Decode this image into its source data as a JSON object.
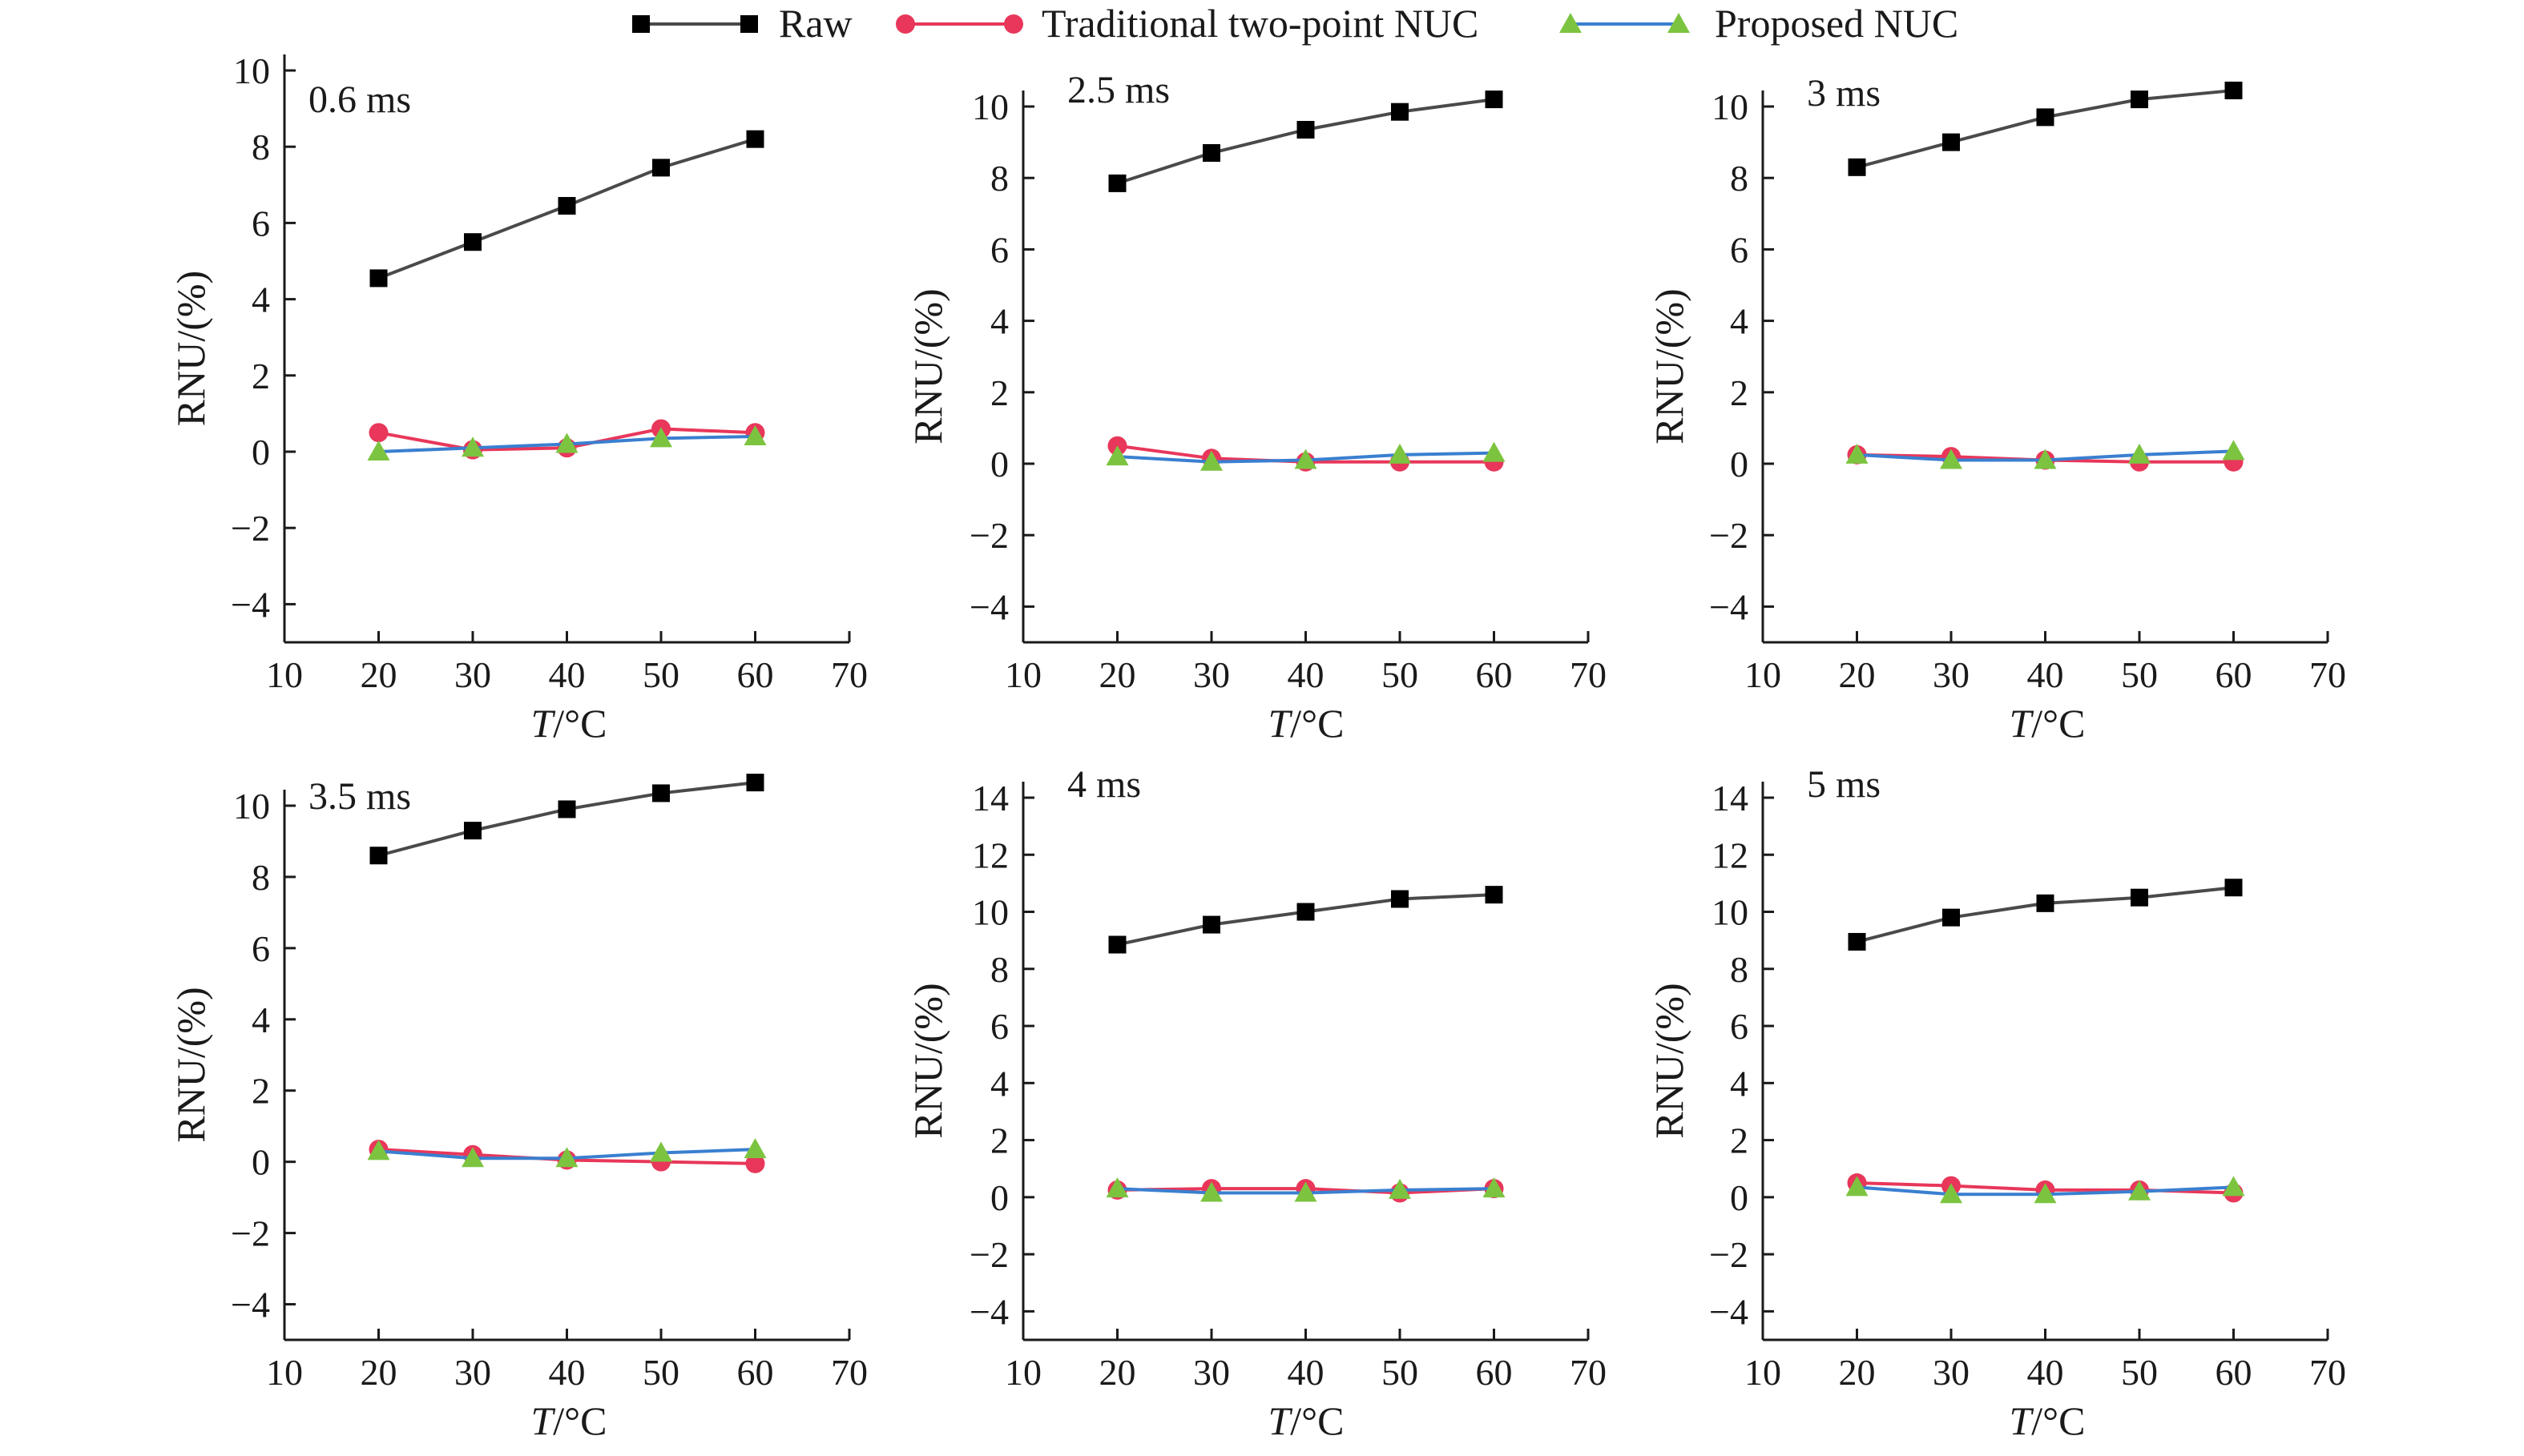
{
  "figure": {
    "legend": [
      {
        "label": "Raw",
        "color": "#4a4a4a",
        "marker": "square",
        "marker_color": "#000000"
      },
      {
        "label": "Traditional two-point NUC",
        "color": "#e8375a",
        "marker": "circle",
        "marker_color": "#e8375a"
      },
      {
        "label": "Proposed NUC",
        "color": "#3a7fd0",
        "marker": "triangle",
        "marker_color": "#7cc440"
      }
    ],
    "xlabel_italic": "T",
    "xlabel_rest": "/°C",
    "ylabel": "RNU/(%)"
  },
  "chart_data": [
    {
      "type": "line",
      "title": "0.6 ms",
      "xlabel": "T/°C",
      "ylabel": "RNU/(%)",
      "xlim": [
        10,
        70
      ],
      "ylim": [
        -5,
        10
      ],
      "xticks": [
        10,
        20,
        30,
        40,
        50,
        60,
        70
      ],
      "yticks": [
        -4,
        -2,
        0,
        2,
        4,
        6,
        8,
        10
      ],
      "x": [
        20,
        30,
        40,
        50,
        60
      ],
      "series": [
        {
          "name": "Raw",
          "values": [
            4.55,
            5.5,
            6.45,
            7.45,
            8.2
          ]
        },
        {
          "name": "Traditional two-point NUC",
          "values": [
            0.5,
            0.05,
            0.1,
            0.6,
            0.5
          ]
        },
        {
          "name": "Proposed NUC",
          "values": [
            0.0,
            0.1,
            0.2,
            0.35,
            0.4
          ]
        }
      ]
    },
    {
      "type": "line",
      "title": "2.5 ms",
      "xlabel": "T/°C",
      "ylabel": "RNU/(%)",
      "xlim": [
        10,
        70
      ],
      "ylim": [
        -5,
        11
      ],
      "xticks": [
        10,
        20,
        30,
        40,
        50,
        60,
        70
      ],
      "yticks": [
        -4,
        -2,
        0,
        2,
        4,
        6,
        8,
        10
      ],
      "x": [
        20,
        30,
        40,
        50,
        60
      ],
      "series": [
        {
          "name": "Raw",
          "values": [
            7.85,
            8.7,
            9.35,
            9.85,
            10.2
          ]
        },
        {
          "name": "Traditional two-point NUC",
          "values": [
            0.5,
            0.15,
            0.05,
            0.05,
            0.05
          ]
        },
        {
          "name": "Proposed NUC",
          "values": [
            0.2,
            0.05,
            0.1,
            0.25,
            0.3
          ]
        }
      ]
    },
    {
      "type": "line",
      "title": "3 ms",
      "xlabel": "T/°C",
      "ylabel": "RNU/(%)",
      "xlim": [
        10,
        70
      ],
      "ylim": [
        -5,
        11
      ],
      "xticks": [
        10,
        20,
        30,
        40,
        50,
        60,
        70
      ],
      "yticks": [
        -4,
        -2,
        0,
        2,
        4,
        6,
        8,
        10
      ],
      "x": [
        20,
        30,
        40,
        50,
        60
      ],
      "series": [
        {
          "name": "Raw",
          "values": [
            8.3,
            9.0,
            9.7,
            10.2,
            10.45
          ]
        },
        {
          "name": "Traditional two-point NUC",
          "values": [
            0.25,
            0.2,
            0.1,
            0.05,
            0.05
          ]
        },
        {
          "name": "Proposed NUC",
          "values": [
            0.25,
            0.1,
            0.1,
            0.25,
            0.35
          ]
        }
      ]
    },
    {
      "type": "line",
      "title": "3.5 ms",
      "xlabel": "T/°C",
      "ylabel": "RNU/(%)",
      "xlim": [
        10,
        70
      ],
      "ylim": [
        -5,
        11
      ],
      "xticks": [
        10,
        20,
        30,
        40,
        50,
        60,
        70
      ],
      "yticks": [
        -4,
        -2,
        0,
        2,
        4,
        6,
        8,
        10
      ],
      "x": [
        20,
        30,
        40,
        50,
        60
      ],
      "series": [
        {
          "name": "Raw",
          "values": [
            8.6,
            9.3,
            9.9,
            10.35,
            10.65
          ]
        },
        {
          "name": "Traditional two-point NUC",
          "values": [
            0.35,
            0.2,
            0.05,
            0.0,
            -0.05
          ]
        },
        {
          "name": "Proposed NUC",
          "values": [
            0.3,
            0.1,
            0.1,
            0.25,
            0.35
          ]
        }
      ]
    },
    {
      "type": "line",
      "title": "4 ms",
      "xlabel": "T/°C",
      "ylabel": "RNU/(%)",
      "xlim": [
        10,
        70
      ],
      "ylim": [
        -5,
        15
      ],
      "xticks": [
        10,
        20,
        30,
        40,
        50,
        60,
        70
      ],
      "yticks": [
        -4,
        -2,
        0,
        2,
        4,
        6,
        8,
        10,
        12,
        14
      ],
      "x": [
        20,
        30,
        40,
        50,
        60
      ],
      "series": [
        {
          "name": "Raw",
          "values": [
            8.85,
            9.55,
            10.0,
            10.45,
            10.6
          ]
        },
        {
          "name": "Traditional two-point NUC",
          "values": [
            0.25,
            0.3,
            0.3,
            0.15,
            0.3
          ]
        },
        {
          "name": "Proposed NUC",
          "values": [
            0.3,
            0.15,
            0.15,
            0.25,
            0.3
          ]
        }
      ]
    },
    {
      "type": "line",
      "title": "5 ms",
      "xlabel": "T/°C",
      "ylabel": "RNU/(%)",
      "xlim": [
        10,
        70
      ],
      "ylim": [
        -5,
        15
      ],
      "xticks": [
        10,
        20,
        30,
        40,
        50,
        60,
        70
      ],
      "yticks": [
        -4,
        -2,
        0,
        2,
        4,
        6,
        8,
        10,
        12,
        14
      ],
      "x": [
        20,
        30,
        40,
        50,
        60
      ],
      "series": [
        {
          "name": "Raw",
          "values": [
            8.95,
            9.8,
            10.3,
            10.5,
            10.85
          ]
        },
        {
          "name": "Traditional two-point NUC",
          "values": [
            0.5,
            0.4,
            0.25,
            0.25,
            0.15
          ]
        },
        {
          "name": "Proposed NUC",
          "values": [
            0.35,
            0.1,
            0.1,
            0.2,
            0.35
          ]
        }
      ]
    }
  ]
}
